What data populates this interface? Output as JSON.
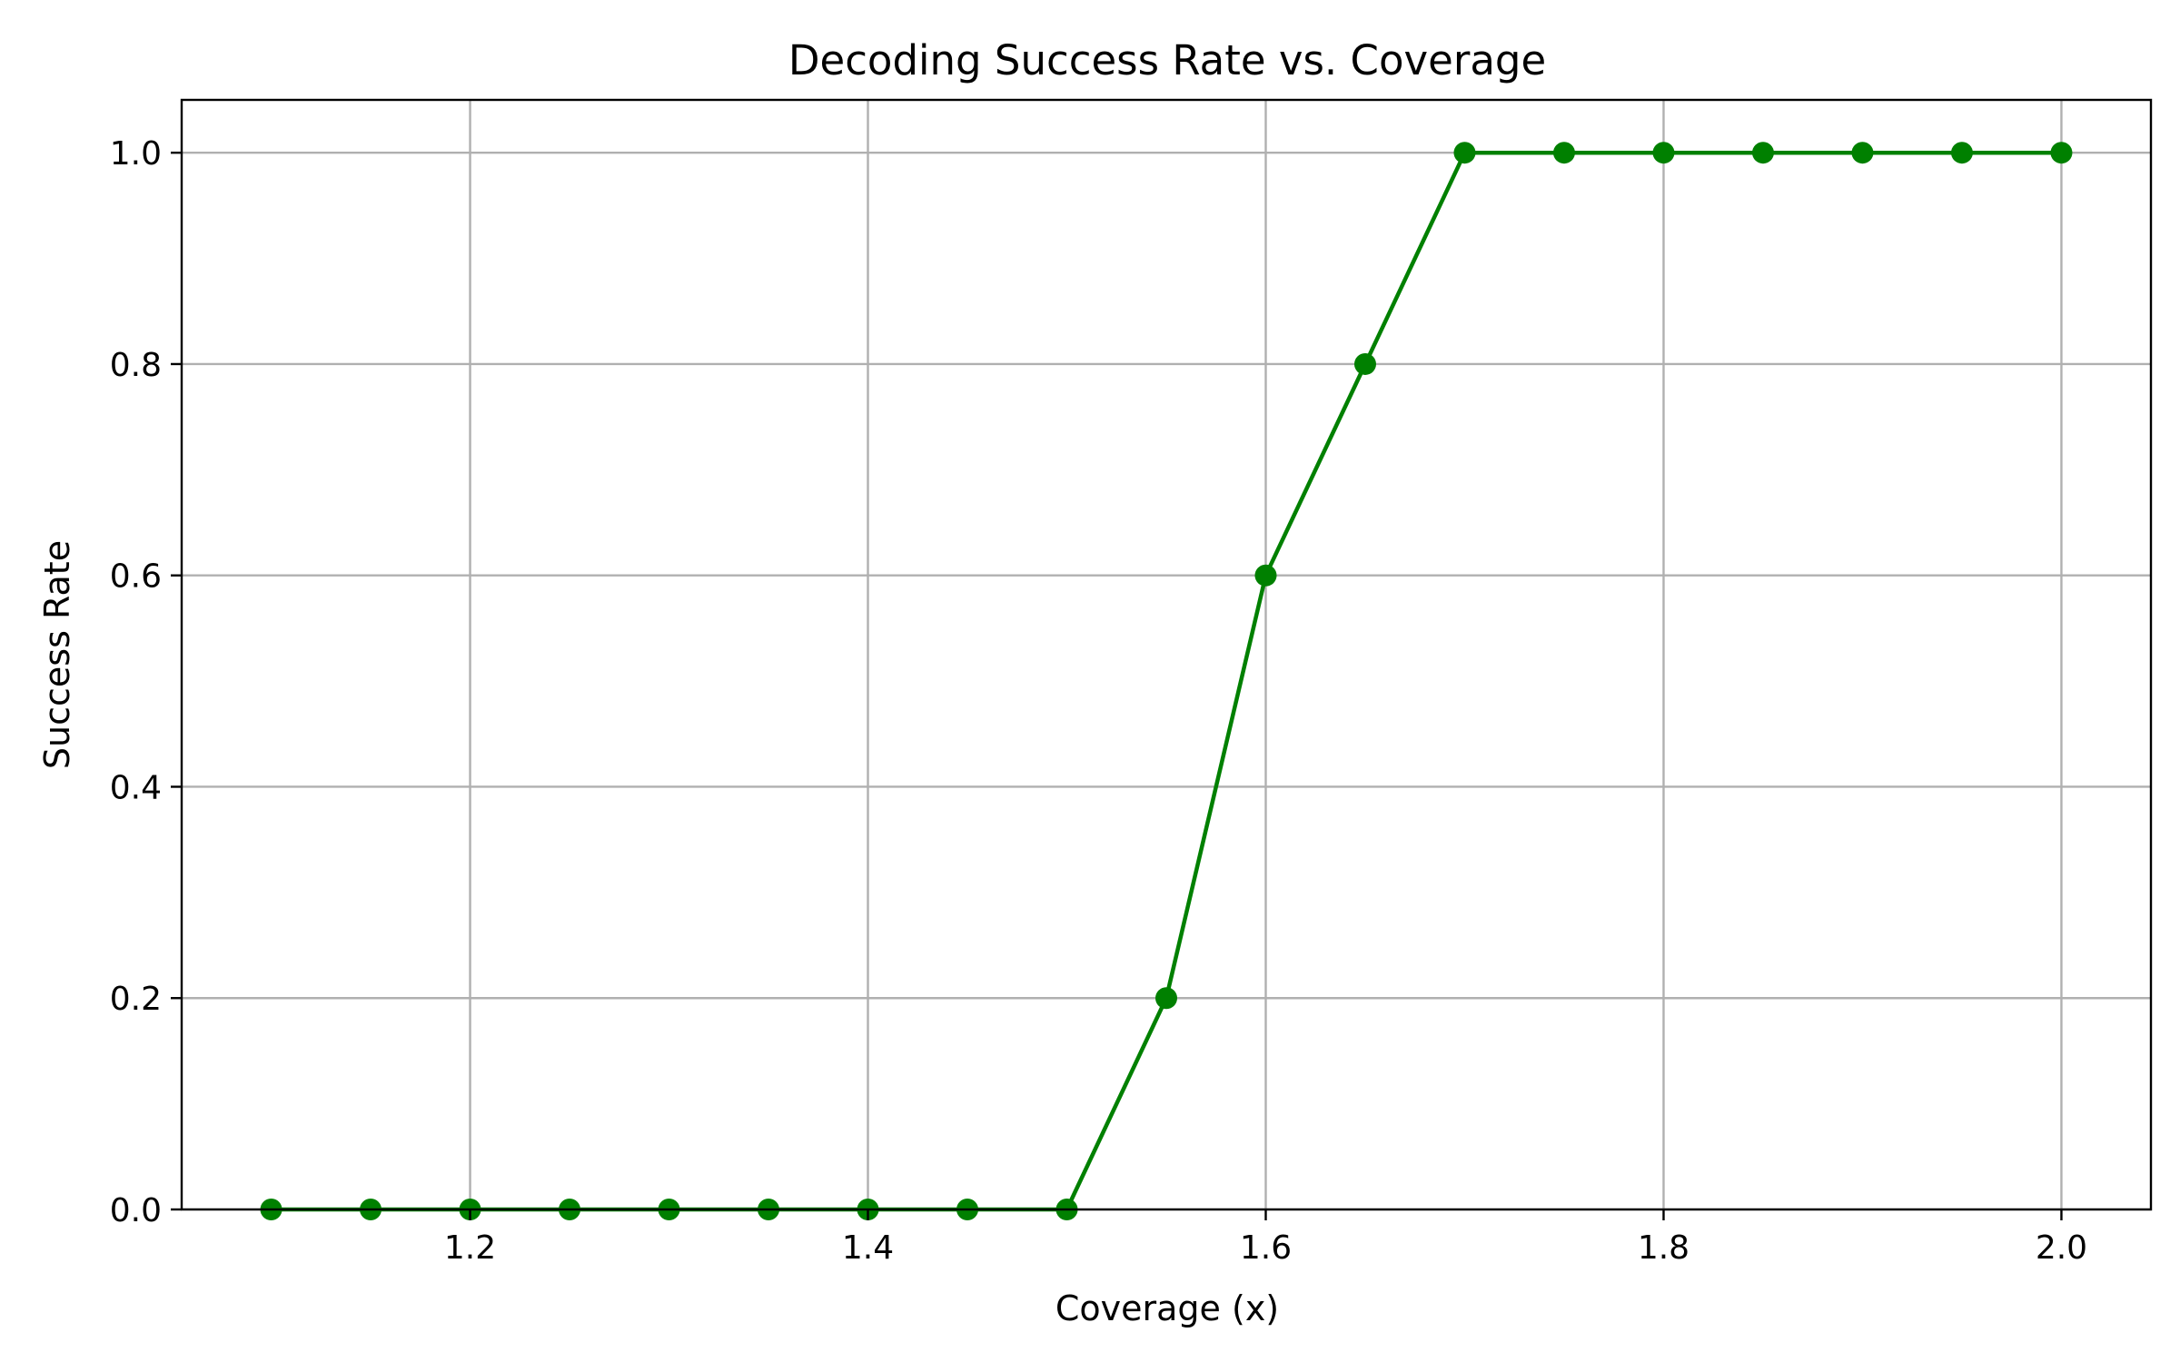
{
  "chart_data": {
    "type": "line",
    "title": "Decoding Success Rate vs. Coverage",
    "xlabel": "Coverage (x)",
    "ylabel": "Success Rate",
    "xlim": [
      1.055,
      2.045
    ],
    "ylim": [
      0.0,
      1.05
    ],
    "grid": true,
    "x_ticks": [
      1.2,
      1.4,
      1.6,
      1.8,
      2.0
    ],
    "x_tick_labels": [
      "1.2",
      "1.4",
      "1.6",
      "1.8",
      "2.0"
    ],
    "y_ticks": [
      0.0,
      0.2,
      0.4,
      0.6,
      0.8,
      1.0
    ],
    "y_tick_labels": [
      "0.0",
      "0.2",
      "0.4",
      "0.6",
      "0.8",
      "1.0"
    ],
    "series": [
      {
        "color": "#008000",
        "marker": "circle",
        "x": [
          1.1,
          1.15,
          1.2,
          1.25,
          1.3,
          1.35,
          1.4,
          1.45,
          1.5,
          1.55,
          1.6,
          1.65,
          1.7,
          1.75,
          1.8,
          1.85,
          1.9,
          1.95,
          2.0
        ],
        "y": [
          0.0,
          0.0,
          0.0,
          0.0,
          0.0,
          0.0,
          0.0,
          0.0,
          0.0,
          0.2,
          0.6,
          0.8,
          1.0,
          1.0,
          1.0,
          1.0,
          1.0,
          1.0,
          1.0
        ]
      }
    ]
  }
}
